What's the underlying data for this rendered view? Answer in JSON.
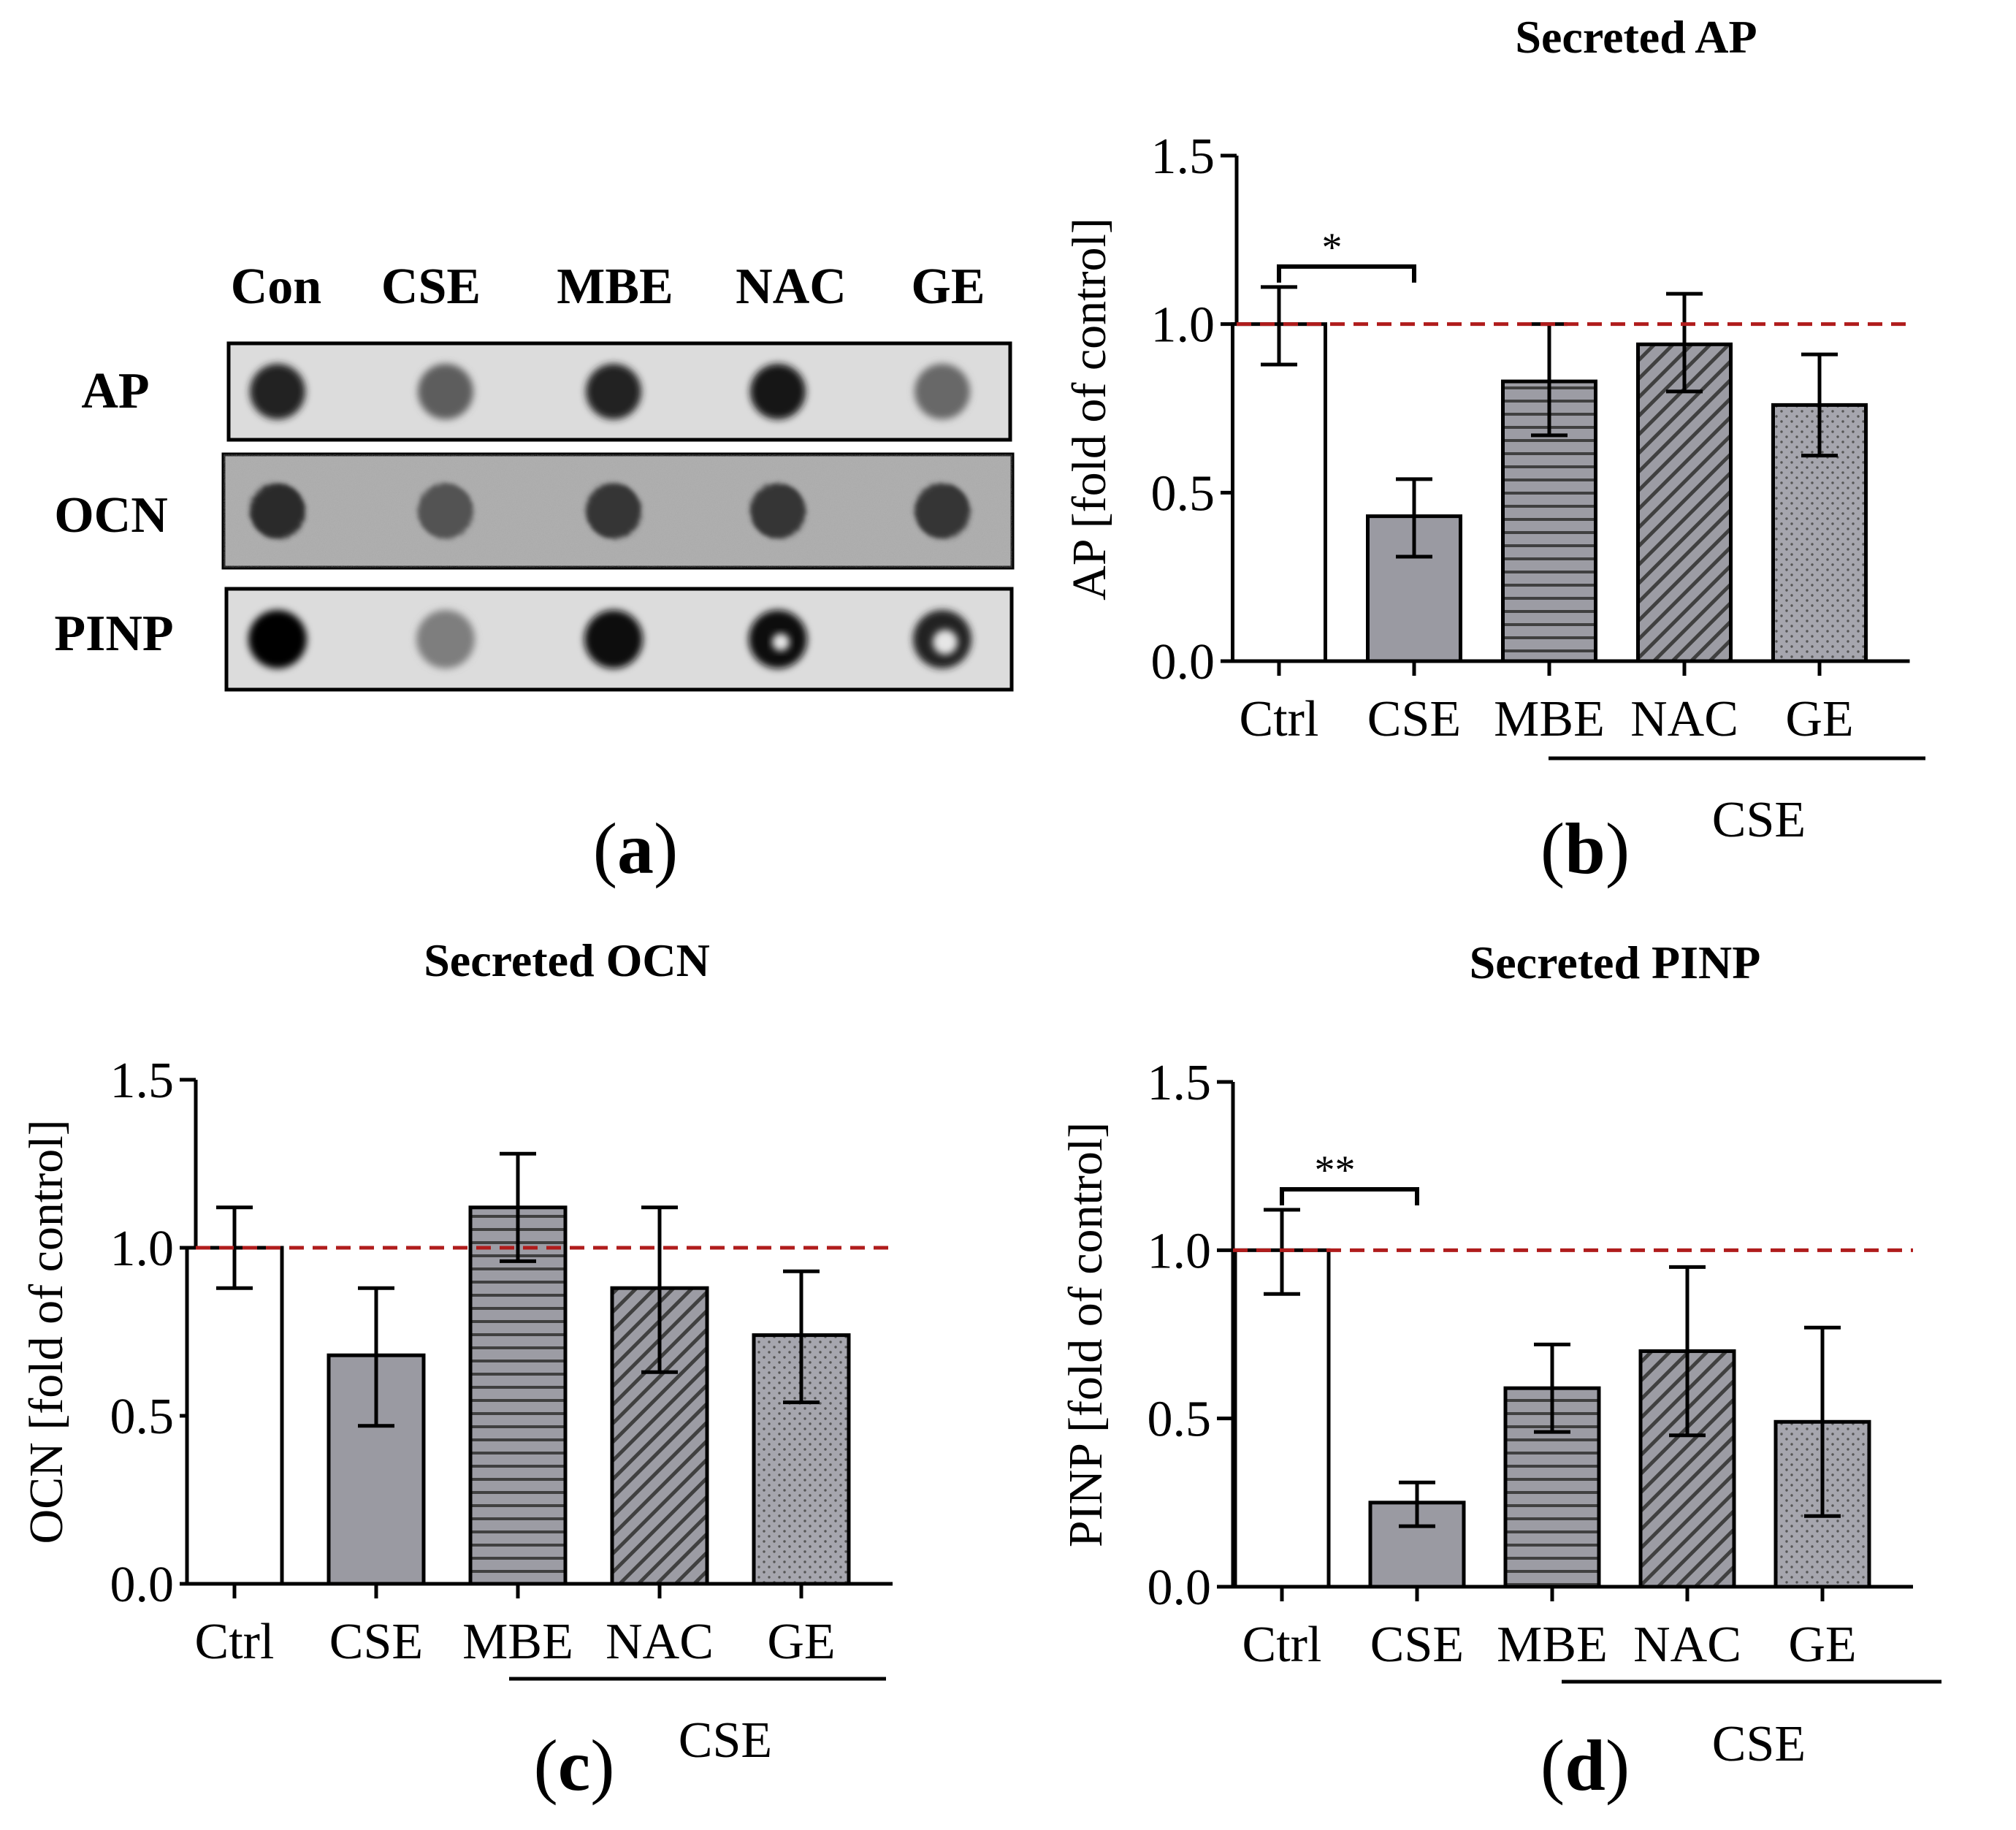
{
  "colors": {
    "ctrl_fill": "#ffffff",
    "cse_fill": "#9a9aa2",
    "pattern_bg": "#9c9ca4",
    "pattern_line": "#404040",
    "reference_line": "#b01c1c",
    "axis": "#000000"
  },
  "blot": {
    "columns": [
      "Con",
      "CSE",
      "MBE",
      "NAC",
      "GE"
    ],
    "rows": [
      {
        "label": "AP",
        "intensities": [
          0.85,
          0.55,
          0.85,
          0.9,
          0.5
        ],
        "rings": [
          false,
          false,
          false,
          false,
          false
        ]
      },
      {
        "label": "OCN",
        "intensities": [
          0.8,
          0.6,
          0.75,
          0.75,
          0.75
        ],
        "rings": [
          false,
          false,
          false,
          false,
          false
        ]
      },
      {
        "label": "PINP",
        "intensities": [
          1.0,
          0.38,
          0.95,
          0.95,
          0.85
        ],
        "rings": [
          false,
          false,
          false,
          true,
          true
        ]
      }
    ],
    "panel_label": "a"
  },
  "chart_data": [
    {
      "type": "bar",
      "panel": "b",
      "title": "Secreted AP",
      "ylabel": "AP [fold of control]",
      "xlabel": "",
      "ylim": [
        0,
        1.5
      ],
      "yticks": [
        "0.0",
        "0.5",
        "1.0",
        "1.5"
      ],
      "categories": [
        "Ctrl",
        "CSE",
        "MBE",
        "NAC",
        "GE"
      ],
      "values": [
        1.0,
        0.43,
        0.83,
        0.94,
        0.76
      ],
      "err_high": [
        1.11,
        0.54,
        1.0,
        1.09,
        0.91
      ],
      "err_low": [
        0.88,
        0.31,
        0.67,
        0.8,
        0.61
      ],
      "fills": [
        "white",
        "solid",
        "horizontal",
        "diagonal",
        "dots"
      ],
      "reference_line": 1.0,
      "group_label": "CSE",
      "significance": {
        "from": 0,
        "to": 1,
        "label": "*"
      }
    },
    {
      "type": "bar",
      "panel": "c",
      "title": "Secreted OCN",
      "ylabel": "OCN [fold of control]",
      "xlabel": "",
      "ylim": [
        0,
        1.5
      ],
      "yticks": [
        "0.0",
        "0.5",
        "1.0",
        "1.5"
      ],
      "categories": [
        "Ctrl",
        "CSE",
        "MBE",
        "NAC",
        "GE"
      ],
      "values": [
        1.0,
        0.68,
        1.12,
        0.88,
        0.74
      ],
      "err_high": [
        1.12,
        0.88,
        1.28,
        1.12,
        0.93
      ],
      "err_low": [
        0.88,
        0.47,
        0.96,
        0.63,
        0.54
      ],
      "fills": [
        "white",
        "solid",
        "horizontal",
        "diagonal",
        "dots"
      ],
      "reference_line": 1.0,
      "group_label": "CSE",
      "significance": null
    },
    {
      "type": "bar",
      "panel": "d",
      "title": "Secreted PINP",
      "ylabel": "PINP [fold of control]",
      "xlabel": "",
      "ylim": [
        0,
        1.5
      ],
      "yticks": [
        "0.0",
        "0.5",
        "1.0",
        "1.5"
      ],
      "categories": [
        "Ctrl",
        "CSE",
        "MBE",
        "NAC",
        "GE"
      ],
      "values": [
        1.0,
        0.25,
        0.59,
        0.7,
        0.49
      ],
      "err_high": [
        1.12,
        0.31,
        0.72,
        0.95,
        0.77
      ],
      "err_low": [
        0.87,
        0.18,
        0.46,
        0.45,
        0.21
      ],
      "fills": [
        "white",
        "solid",
        "horizontal",
        "diagonal",
        "dots"
      ],
      "reference_line": 1.0,
      "group_label": "CSE",
      "significance": {
        "from": 0,
        "to": 1,
        "label": "**"
      }
    }
  ]
}
